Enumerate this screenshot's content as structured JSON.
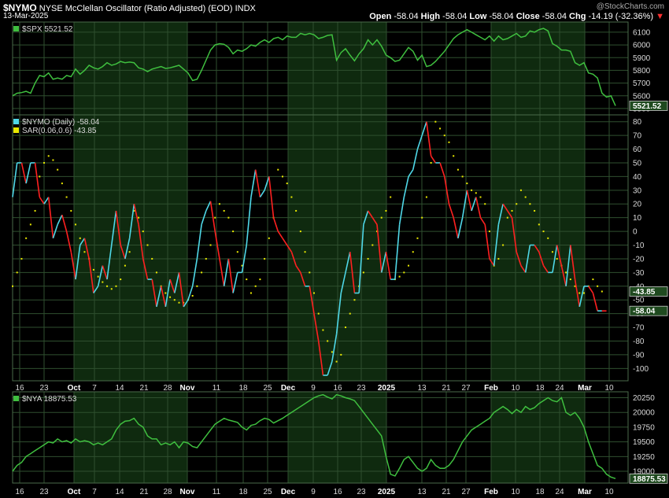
{
  "header": {
    "symbol": "$NYMO",
    "title": "NYSE McClellan Oscillator (Ratio Adjusted) (EOD)",
    "exchange": "INDX",
    "date": "13-Mar-2025",
    "watermark": "@StockCharts.com",
    "open_label": "Open",
    "open": "-58.04",
    "high_label": "High",
    "high": "-58.04",
    "low_label": "Low",
    "low": "-58.04",
    "close_label": "Close",
    "close": "-58.04",
    "chg_label": "Chg",
    "chg": "-14.19 (-32.36%)"
  },
  "colors": {
    "background": "#000000",
    "shade": "#0f2a0f",
    "grid": "#2f4f2f",
    "price_line": "#3fbf3f",
    "osc_up": "#4fd8e8",
    "osc_down": "#ff2020",
    "sar": "#e8e800",
    "label_box": "#1f4a1f"
  },
  "chart_data": [
    {
      "type": "line",
      "name": "$SPX panel",
      "legend": "$SPX 5521.52",
      "last_label": "5521.52",
      "ylim": [
        5450,
        6180
      ],
      "yticks": [
        5500,
        5600,
        5700,
        5800,
        5900,
        6000,
        6100
      ],
      "values": [
        5600,
        5620,
        5625,
        5635,
        5620,
        5700,
        5760,
        5750,
        5780,
        5730,
        5740,
        5730,
        5760,
        5750,
        5810,
        5770,
        5800,
        5840,
        5820,
        5810,
        5830,
        5860,
        5840,
        5850,
        5870,
        5860,
        5865,
        5860,
        5820,
        5810,
        5790,
        5810,
        5820,
        5830,
        5815,
        5820,
        5830,
        5840,
        5810,
        5780,
        5720,
        5730,
        5800,
        5880,
        5960,
        6000,
        6010,
        6005,
        5980,
        5930,
        5960,
        5950,
        5970,
        6000,
        5990,
        6020,
        6040,
        6020,
        6050,
        6060,
        6040,
        6070,
        6060,
        6060,
        6090,
        6080,
        6090,
        6080,
        6050,
        6060,
        6075,
        6080,
        5880,
        5940,
        5970,
        5920,
        5875,
        5930,
        5970,
        6040,
        6000,
        6040,
        5990,
        5920,
        5900,
        5870,
        5880,
        5930,
        5980,
        5950,
        5880,
        5920,
        5830,
        5840,
        5870,
        5910,
        5950,
        6000,
        6050,
        6080,
        6100,
        6120,
        6100,
        6080,
        6060,
        6040,
        6070,
        6030,
        6070,
        6040,
        6050,
        6070,
        6090,
        6060,
        6070,
        6110,
        6100,
        6120,
        6130,
        6110,
        6010,
        5990,
        5960,
        5960,
        5950,
        5860,
        5840,
        5860,
        5780,
        5770,
        5740,
        5620,
        5590,
        5600,
        5521.52
      ]
    },
    {
      "type": "line",
      "name": "$NYMO panel",
      "legend": "$NYMO (Daily) -58.04",
      "sar_legend": "SAR(0.06,0.6) -43.85",
      "last_label": "-58.04",
      "sar_label": "-43.85",
      "ylim": [
        -109,
        85
      ],
      "yticks": [
        80,
        70,
        60,
        50,
        40,
        30,
        20,
        10,
        0,
        -10,
        -20,
        -30,
        -40,
        -50,
        -60,
        -70,
        -80,
        -90,
        -100
      ],
      "values": [
        25,
        50,
        50,
        35,
        50,
        50,
        25,
        20,
        25,
        -5,
        5,
        12,
        0,
        -15,
        -35,
        -10,
        -5,
        -20,
        -45,
        -40,
        -25,
        -35,
        -10,
        15,
        -10,
        -20,
        -5,
        20,
        5,
        -20,
        -35,
        -35,
        -55,
        -40,
        -55,
        -35,
        -45,
        -30,
        -55,
        -50,
        -40,
        -20,
        5,
        15,
        22,
        0,
        -20,
        -40,
        -20,
        -45,
        -30,
        -30,
        -10,
        25,
        45,
        25,
        30,
        40,
        10,
        0,
        -5,
        -10,
        -15,
        -25,
        -30,
        -40,
        -40,
        -60,
        -80,
        -105,
        -105,
        -95,
        -75,
        -45,
        -30,
        -15,
        -45,
        -45,
        5,
        15,
        10,
        5,
        -30,
        -15,
        -35,
        -35,
        5,
        25,
        40,
        45,
        60,
        70,
        80,
        55,
        50,
        50,
        40,
        20,
        10,
        -5,
        10,
        30,
        15,
        25,
        10,
        5,
        -20,
        -25,
        5,
        20,
        15,
        10,
        -15,
        -25,
        -30,
        -10,
        -10,
        -15,
        -25,
        -30,
        -30,
        -10,
        -25,
        -40,
        -10,
        -35,
        -55,
        -40,
        -40,
        -45,
        -58,
        -58,
        -58.04
      ],
      "sar_values": [
        -40,
        -30,
        -20,
        -5,
        5,
        15,
        40,
        50,
        55,
        52,
        45,
        35,
        25,
        15,
        5,
        -5,
        -15,
        -20,
        -28,
        -33,
        -37,
        -40,
        -42,
        -40,
        -35,
        -25,
        -15,
        15,
        10,
        0,
        -10,
        -20,
        -30,
        -40,
        -45,
        -48,
        -50,
        -52,
        -52,
        -50,
        -47,
        -40,
        -30,
        -20,
        -10,
        10,
        20,
        15,
        10,
        0,
        -15,
        -25,
        -35,
        -45,
        -40,
        -35,
        -20,
        -5,
        10,
        45,
        40,
        35,
        25,
        15,
        0,
        -15,
        -30,
        -45,
        -60,
        -72,
        -80,
        -88,
        -95,
        -90,
        -70,
        -60,
        -50,
        -40,
        -30,
        -20,
        -10,
        0,
        10,
        15,
        25,
        -35,
        -33,
        -30,
        -25,
        -15,
        -5,
        10,
        25,
        50,
        80,
        75,
        70,
        65,
        55,
        45,
        40,
        35,
        30,
        28,
        25,
        20,
        0,
        -25,
        -20,
        -10,
        10,
        15,
        20,
        30,
        25,
        20,
        15,
        5,
        0,
        -5,
        -15,
        -20,
        -25,
        -30,
        -35,
        -40,
        -45,
        -45,
        -40,
        -35,
        -40,
        -43.85
      ]
    },
    {
      "type": "line",
      "name": "$NYA panel",
      "legend": "$NYA 18875.53",
      "last_label": "18875.53",
      "ylim": [
        18800,
        20350
      ],
      "yticks": [
        19000,
        19250,
        19500,
        19750,
        20000,
        20250
      ],
      "values": [
        19000,
        19100,
        19150,
        19250,
        19300,
        19350,
        19400,
        19450,
        19500,
        19480,
        19550,
        19500,
        19520,
        19480,
        19550,
        19500,
        19520,
        19500,
        19450,
        19480,
        19450,
        19500,
        19550,
        19700,
        19800,
        19850,
        19860,
        19900,
        19800,
        19750,
        19600,
        19550,
        19550,
        19450,
        19480,
        19450,
        19500,
        19400,
        19500,
        19480,
        19420,
        19400,
        19500,
        19600,
        19700,
        19800,
        19850,
        19900,
        19870,
        19850,
        19830,
        19750,
        19700,
        19780,
        19800,
        19860,
        19900,
        19880,
        19820,
        19860,
        19900,
        19950,
        20000,
        20050,
        20100,
        20150,
        20200,
        20250,
        20280,
        20300,
        20260,
        20230,
        20300,
        20280,
        20250,
        20230,
        20200,
        20100,
        20000,
        19900,
        19800,
        19700,
        19600,
        19250,
        18950,
        18920,
        19050,
        19200,
        19250,
        19150,
        19050,
        19000,
        19050,
        19200,
        19100,
        19050,
        19050,
        19100,
        19200,
        19350,
        19500,
        19600,
        19700,
        19750,
        19800,
        19850,
        19900,
        20000,
        20050,
        20100,
        20050,
        19980,
        20050,
        20000,
        20100,
        20050,
        20080,
        20150,
        20200,
        20250,
        20200,
        20180,
        20250,
        20000,
        19950,
        20000,
        19900,
        19750,
        19500,
        19300,
        19100,
        19050,
        18950,
        18900,
        18875.53
      ]
    }
  ],
  "x_axis": {
    "labels": [
      {
        "text": "16",
        "bold": false
      },
      {
        "text": "23",
        "bold": false
      },
      {
        "text": "Oct",
        "bold": true
      },
      {
        "text": "7",
        "bold": false
      },
      {
        "text": "14",
        "bold": false
      },
      {
        "text": "21",
        "bold": false
      },
      {
        "text": "28",
        "bold": false
      },
      {
        "text": "Nov",
        "bold": true
      },
      {
        "text": "11",
        "bold": false
      },
      {
        "text": "18",
        "bold": false
      },
      {
        "text": "25",
        "bold": false
      },
      {
        "text": "Dec",
        "bold": true
      },
      {
        "text": "9",
        "bold": false
      },
      {
        "text": "16",
        "bold": false
      },
      {
        "text": "23",
        "bold": false
      },
      {
        "text": "2025",
        "bold": true
      },
      {
        "text": "13",
        "bold": false
      },
      {
        "text": "21",
        "bold": false
      },
      {
        "text": "27",
        "bold": false
      },
      {
        "text": "Feb",
        "bold": true
      },
      {
        "text": "10",
        "bold": false
      },
      {
        "text": "18",
        "bold": false
      },
      {
        "text": "24",
        "bold": false
      },
      {
        "text": "Mar",
        "bold": true
      },
      {
        "text": "10",
        "bold": false
      }
    ]
  }
}
